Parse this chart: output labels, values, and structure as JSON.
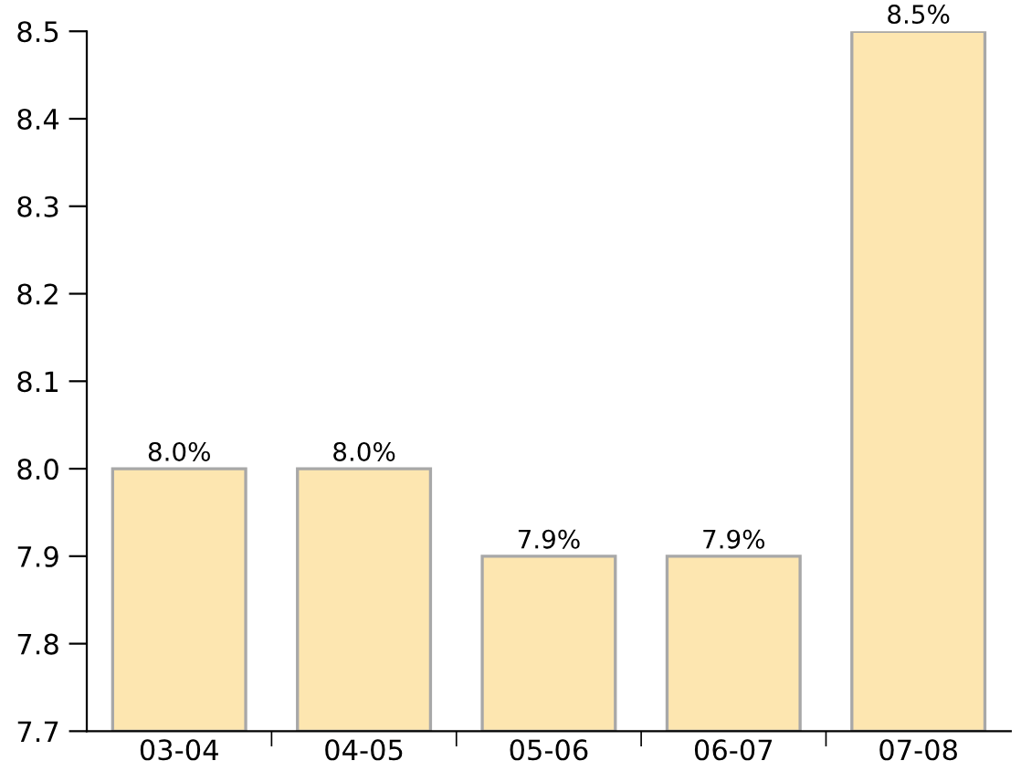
{
  "chart_data": {
    "type": "bar",
    "categories": [
      "03-04",
      "04-05",
      "05-06",
      "06-07",
      "07-08"
    ],
    "values": [
      8.0,
      8.0,
      7.9,
      7.9,
      8.5
    ],
    "value_labels": [
      "8.0%",
      "8.0%",
      "7.9%",
      "7.9%",
      "8.5%"
    ],
    "color": "#fde6b0",
    "ylim": [
      7.7,
      8.5
    ],
    "yticks": [
      7.7,
      7.8,
      7.9,
      {
        "value": 8.0,
        "label": "8.0"
      },
      8.1,
      8.2,
      8.3,
      8.4,
      8.5
    ],
    "grid": false,
    "legend": false
  }
}
